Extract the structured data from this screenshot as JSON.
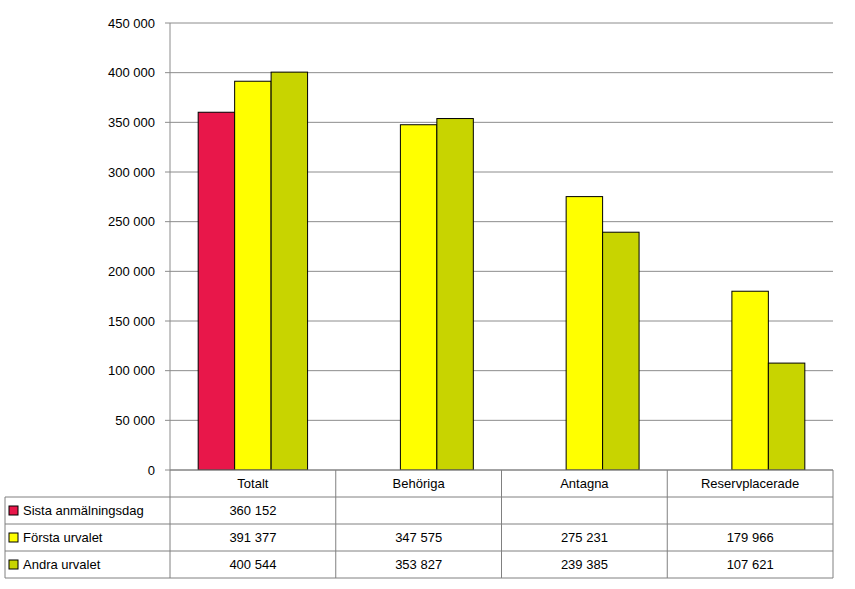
{
  "chart_data": {
    "type": "bar",
    "categories": [
      "Totalt",
      "Behöriga",
      "Antagna",
      "Reservplacerade"
    ],
    "series": [
      {
        "name": "Sista anmälningsdag",
        "color": "#e8174a",
        "values": [
          360152,
          null,
          null,
          null
        ],
        "value_labels": [
          "360 152",
          null,
          null,
          null
        ]
      },
      {
        "name": "Första urvalet",
        "color": "#ffff00",
        "values": [
          391377,
          347575,
          275231,
          179966
        ],
        "value_labels": [
          "391 377",
          "347 575",
          "275 231",
          "179 966"
        ]
      },
      {
        "name": "Andra urvalet",
        "color": "#c8d400",
        "values": [
          400544,
          353827,
          239385,
          107621
        ],
        "value_labels": [
          "400 544",
          "353 827",
          "239 385",
          "107 621"
        ]
      }
    ],
    "ylim": [
      0,
      450000
    ],
    "yticks": [
      0,
      {
        "value": 50000,
        "label": "50 000"
      },
      {
        "value": 100000,
        "label": "100 000"
      },
      {
        "value": 150000,
        "label": "150 000"
      },
      {
        "value": 200000,
        "label": "200 000"
      },
      {
        "value": 250000,
        "label": "250 000"
      },
      {
        "value": 300000,
        "label": "300 000"
      },
      {
        "value": 350000,
        "label": "350 000"
      },
      {
        "value": 400000,
        "label": "400 000"
      },
      {
        "value": 450000,
        "label": "450 000"
      }
    ],
    "grid": true
  }
}
